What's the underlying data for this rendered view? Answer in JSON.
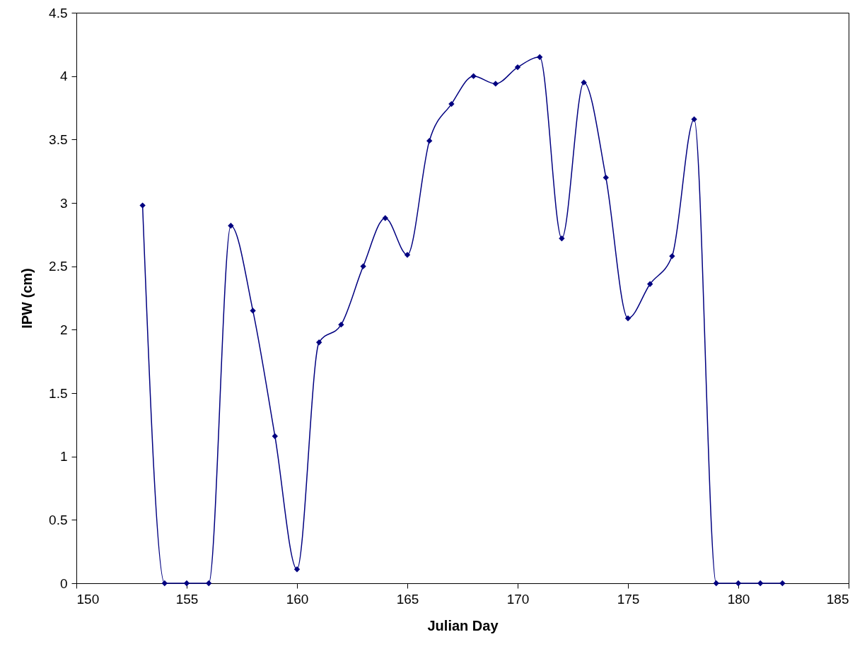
{
  "chart_data": {
    "type": "line",
    "xlabel": "Julian Day",
    "ylabel": "IPW (cm)",
    "x": [
      153,
      154,
      155,
      156,
      157,
      158,
      159,
      160,
      161,
      162,
      163,
      164,
      165,
      166,
      167,
      168,
      169,
      170,
      171,
      172,
      173,
      174,
      175,
      176,
      177,
      178,
      179,
      180,
      181,
      182
    ],
    "series": [
      {
        "color": "#000080",
        "values": [
          2.98,
          0,
          0,
          0,
          2.82,
          2.15,
          1.16,
          0.11,
          1.9,
          2.04,
          2.5,
          2.88,
          2.59,
          3.49,
          3.78,
          4.0,
          3.94,
          4.07,
          4.15,
          2.72,
          3.95,
          3.2,
          2.09,
          2.36,
          2.58,
          3.66,
          0,
          0,
          0,
          0
        ]
      }
    ],
    "xlim": [
      150,
      185
    ],
    "xticks": [
      150,
      155,
      160,
      165,
      170,
      175,
      180,
      185
    ],
    "ylim": [
      0,
      4.5
    ],
    "yticks": [
      0,
      0.5,
      1,
      1.5,
      2,
      2.5,
      3,
      3.5,
      4,
      4.5
    ],
    "marker": "diamond"
  }
}
